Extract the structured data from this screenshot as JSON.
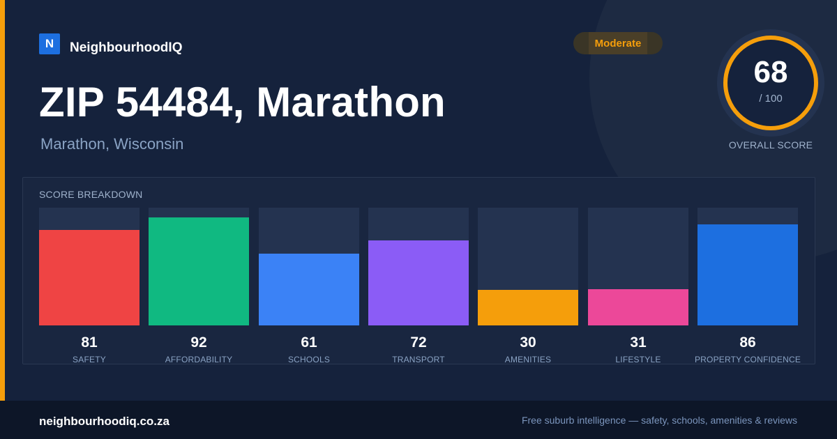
{
  "brand": {
    "logo_letter": "N",
    "name": "NeighbourhoodIQ"
  },
  "badge": {
    "label": "Moderate",
    "color": "#f59e0b"
  },
  "location": {
    "title": "ZIP 54484, Marathon",
    "subtitle": "Marathon, Wisconsin"
  },
  "overall": {
    "score": "68",
    "max": "/ 100",
    "label": "OVERALL SCORE",
    "fraction": 0.68,
    "color": "#f59e0b"
  },
  "breakdown": {
    "label": "SCORE BREAKDOWN",
    "scale_max": 100,
    "items": [
      {
        "label": "SAFETY",
        "value": 81,
        "color": "#ef4444"
      },
      {
        "label": "AFFORDABILITY",
        "value": 92,
        "color": "#10b981"
      },
      {
        "label": "SCHOOLS",
        "value": 61,
        "color": "#3b82f6"
      },
      {
        "label": "TRANSPORT",
        "value": 72,
        "color": "#8b5cf6"
      },
      {
        "label": "AMENITIES",
        "value": 30,
        "color": "#f59e0b"
      },
      {
        "label": "LIFESTYLE",
        "value": 31,
        "color": "#ec4899"
      },
      {
        "label": "PROPERTY CONFIDENCE",
        "value": 86,
        "color": "#1d6fe0"
      }
    ]
  },
  "footer": {
    "domain": "neighbourhoodiq.co.za",
    "tagline": "Free suburb intelligence — safety, schools, amenities & reviews"
  }
}
